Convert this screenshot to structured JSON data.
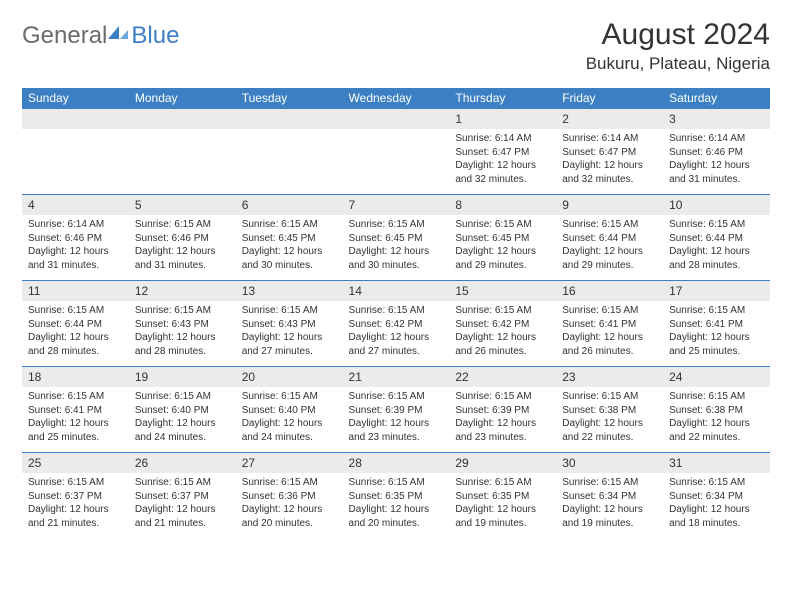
{
  "logo": {
    "part1": "General",
    "part2": "Blue"
  },
  "title": "August 2024",
  "location": "Bukuru, Plateau, Nigeria",
  "colors": {
    "header_bg": "#3c7fc2",
    "header_text": "#ffffff",
    "daynum_bg": "#ebebeb",
    "text": "#333333",
    "logo_gray": "#6b6b6b",
    "logo_blue": "#3c7fc2",
    "row_border": "#3c7fc2"
  },
  "day_headers": [
    "Sunday",
    "Monday",
    "Tuesday",
    "Wednesday",
    "Thursday",
    "Friday",
    "Saturday"
  ],
  "weeks": [
    [
      {
        "n": "",
        "sr": "",
        "ss": "",
        "dl": ""
      },
      {
        "n": "",
        "sr": "",
        "ss": "",
        "dl": ""
      },
      {
        "n": "",
        "sr": "",
        "ss": "",
        "dl": ""
      },
      {
        "n": "",
        "sr": "",
        "ss": "",
        "dl": ""
      },
      {
        "n": "1",
        "sr": "Sunrise: 6:14 AM",
        "ss": "Sunset: 6:47 PM",
        "dl": "Daylight: 12 hours and 32 minutes."
      },
      {
        "n": "2",
        "sr": "Sunrise: 6:14 AM",
        "ss": "Sunset: 6:47 PM",
        "dl": "Daylight: 12 hours and 32 minutes."
      },
      {
        "n": "3",
        "sr": "Sunrise: 6:14 AM",
        "ss": "Sunset: 6:46 PM",
        "dl": "Daylight: 12 hours and 31 minutes."
      }
    ],
    [
      {
        "n": "4",
        "sr": "Sunrise: 6:14 AM",
        "ss": "Sunset: 6:46 PM",
        "dl": "Daylight: 12 hours and 31 minutes."
      },
      {
        "n": "5",
        "sr": "Sunrise: 6:15 AM",
        "ss": "Sunset: 6:46 PM",
        "dl": "Daylight: 12 hours and 31 minutes."
      },
      {
        "n": "6",
        "sr": "Sunrise: 6:15 AM",
        "ss": "Sunset: 6:45 PM",
        "dl": "Daylight: 12 hours and 30 minutes."
      },
      {
        "n": "7",
        "sr": "Sunrise: 6:15 AM",
        "ss": "Sunset: 6:45 PM",
        "dl": "Daylight: 12 hours and 30 minutes."
      },
      {
        "n": "8",
        "sr": "Sunrise: 6:15 AM",
        "ss": "Sunset: 6:45 PM",
        "dl": "Daylight: 12 hours and 29 minutes."
      },
      {
        "n": "9",
        "sr": "Sunrise: 6:15 AM",
        "ss": "Sunset: 6:44 PM",
        "dl": "Daylight: 12 hours and 29 minutes."
      },
      {
        "n": "10",
        "sr": "Sunrise: 6:15 AM",
        "ss": "Sunset: 6:44 PM",
        "dl": "Daylight: 12 hours and 28 minutes."
      }
    ],
    [
      {
        "n": "11",
        "sr": "Sunrise: 6:15 AM",
        "ss": "Sunset: 6:44 PM",
        "dl": "Daylight: 12 hours and 28 minutes."
      },
      {
        "n": "12",
        "sr": "Sunrise: 6:15 AM",
        "ss": "Sunset: 6:43 PM",
        "dl": "Daylight: 12 hours and 28 minutes."
      },
      {
        "n": "13",
        "sr": "Sunrise: 6:15 AM",
        "ss": "Sunset: 6:43 PM",
        "dl": "Daylight: 12 hours and 27 minutes."
      },
      {
        "n": "14",
        "sr": "Sunrise: 6:15 AM",
        "ss": "Sunset: 6:42 PM",
        "dl": "Daylight: 12 hours and 27 minutes."
      },
      {
        "n": "15",
        "sr": "Sunrise: 6:15 AM",
        "ss": "Sunset: 6:42 PM",
        "dl": "Daylight: 12 hours and 26 minutes."
      },
      {
        "n": "16",
        "sr": "Sunrise: 6:15 AM",
        "ss": "Sunset: 6:41 PM",
        "dl": "Daylight: 12 hours and 26 minutes."
      },
      {
        "n": "17",
        "sr": "Sunrise: 6:15 AM",
        "ss": "Sunset: 6:41 PM",
        "dl": "Daylight: 12 hours and 25 minutes."
      }
    ],
    [
      {
        "n": "18",
        "sr": "Sunrise: 6:15 AM",
        "ss": "Sunset: 6:41 PM",
        "dl": "Daylight: 12 hours and 25 minutes."
      },
      {
        "n": "19",
        "sr": "Sunrise: 6:15 AM",
        "ss": "Sunset: 6:40 PM",
        "dl": "Daylight: 12 hours and 24 minutes."
      },
      {
        "n": "20",
        "sr": "Sunrise: 6:15 AM",
        "ss": "Sunset: 6:40 PM",
        "dl": "Daylight: 12 hours and 24 minutes."
      },
      {
        "n": "21",
        "sr": "Sunrise: 6:15 AM",
        "ss": "Sunset: 6:39 PM",
        "dl": "Daylight: 12 hours and 23 minutes."
      },
      {
        "n": "22",
        "sr": "Sunrise: 6:15 AM",
        "ss": "Sunset: 6:39 PM",
        "dl": "Daylight: 12 hours and 23 minutes."
      },
      {
        "n": "23",
        "sr": "Sunrise: 6:15 AM",
        "ss": "Sunset: 6:38 PM",
        "dl": "Daylight: 12 hours and 22 minutes."
      },
      {
        "n": "24",
        "sr": "Sunrise: 6:15 AM",
        "ss": "Sunset: 6:38 PM",
        "dl": "Daylight: 12 hours and 22 minutes."
      }
    ],
    [
      {
        "n": "25",
        "sr": "Sunrise: 6:15 AM",
        "ss": "Sunset: 6:37 PM",
        "dl": "Daylight: 12 hours and 21 minutes."
      },
      {
        "n": "26",
        "sr": "Sunrise: 6:15 AM",
        "ss": "Sunset: 6:37 PM",
        "dl": "Daylight: 12 hours and 21 minutes."
      },
      {
        "n": "27",
        "sr": "Sunrise: 6:15 AM",
        "ss": "Sunset: 6:36 PM",
        "dl": "Daylight: 12 hours and 20 minutes."
      },
      {
        "n": "28",
        "sr": "Sunrise: 6:15 AM",
        "ss": "Sunset: 6:35 PM",
        "dl": "Daylight: 12 hours and 20 minutes."
      },
      {
        "n": "29",
        "sr": "Sunrise: 6:15 AM",
        "ss": "Sunset: 6:35 PM",
        "dl": "Daylight: 12 hours and 19 minutes."
      },
      {
        "n": "30",
        "sr": "Sunrise: 6:15 AM",
        "ss": "Sunset: 6:34 PM",
        "dl": "Daylight: 12 hours and 19 minutes."
      },
      {
        "n": "31",
        "sr": "Sunrise: 6:15 AM",
        "ss": "Sunset: 6:34 PM",
        "dl": "Daylight: 12 hours and 18 minutes."
      }
    ]
  ]
}
